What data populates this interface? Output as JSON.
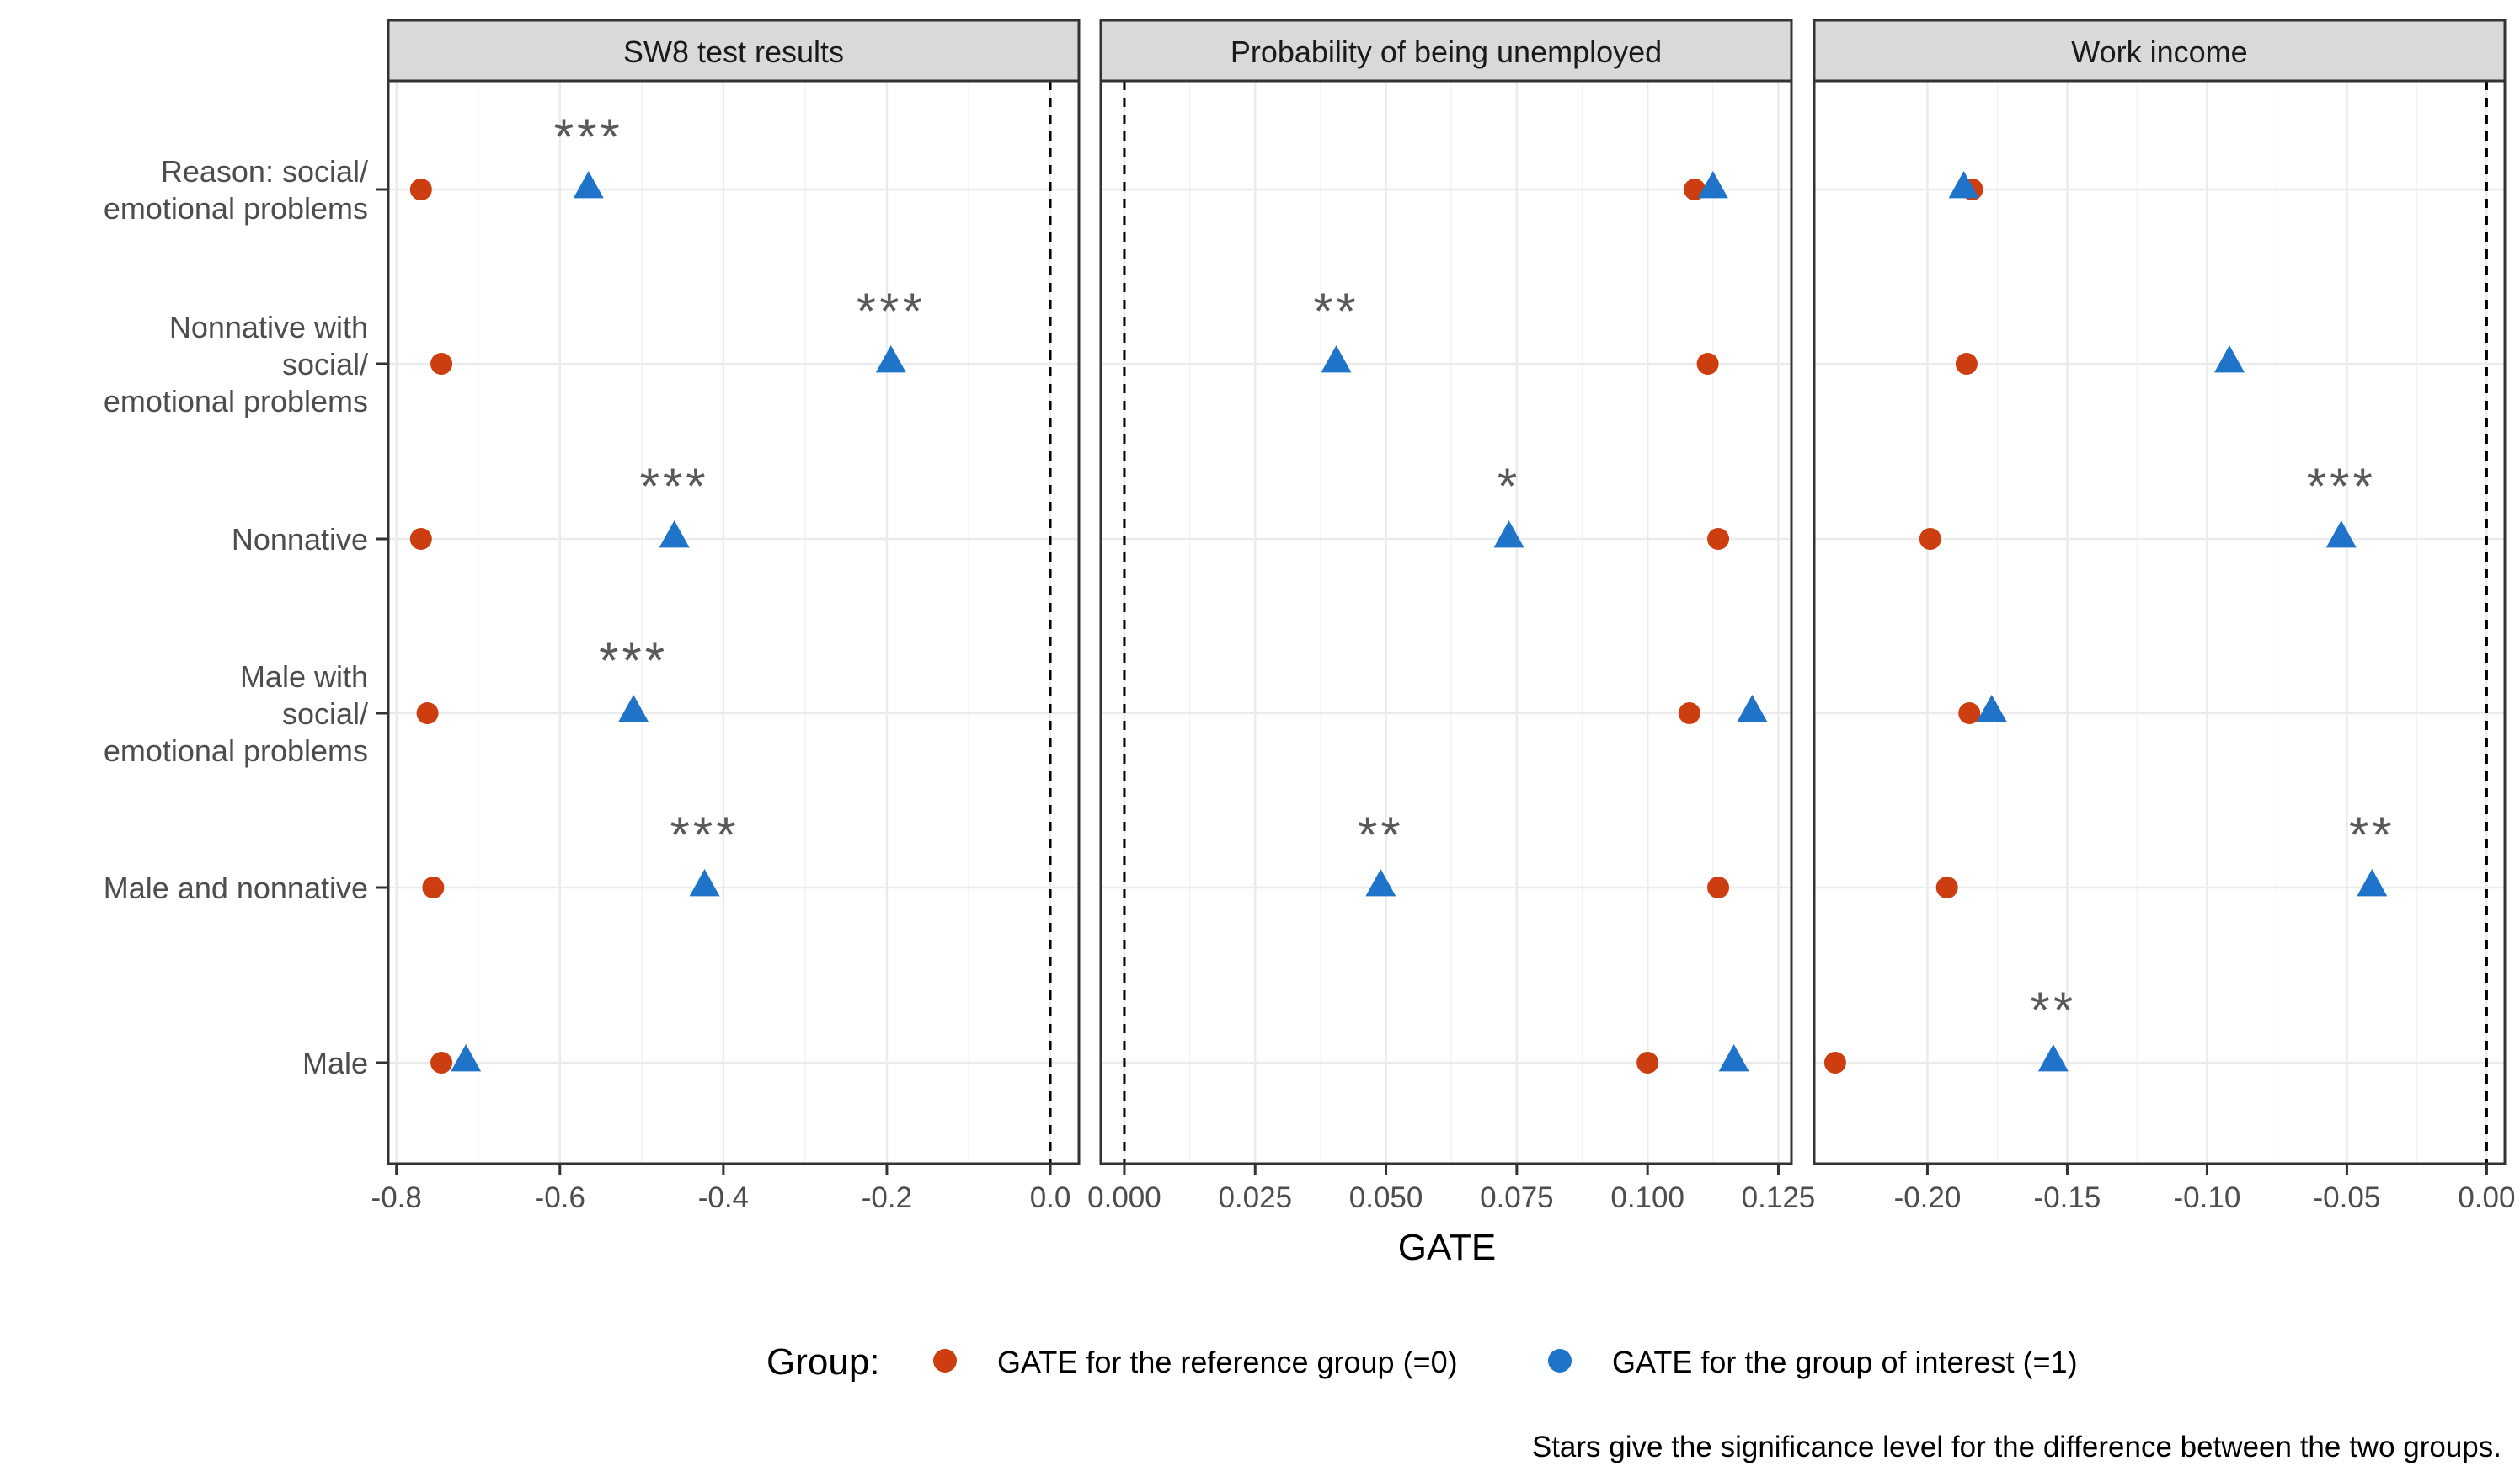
{
  "chart_data": {
    "type": "scatter",
    "xlabel": "GATE",
    "rows": [
      "Reason: social/ emotional problems",
      "Nonnative with social/ emotional problems",
      "Nonnative",
      "Male with social/ emotional problems",
      "Male and nonnative",
      "Male"
    ],
    "row_labels": [
      [
        "Reason: social/",
        "emotional problems"
      ],
      [
        "Nonnative with",
        "social/",
        "emotional problems"
      ],
      [
        "Nonnative"
      ],
      [
        "Male with",
        "social/",
        "emotional problems"
      ],
      [
        "Male and nonnative"
      ],
      [
        "Male"
      ]
    ],
    "panels": [
      {
        "title": "SW8 test results",
        "xlim": [
          -0.81,
          0.035
        ],
        "ticks": [
          -0.8,
          -0.6,
          -0.4,
          -0.2,
          0.0
        ],
        "tick_labels": [
          "-0.8",
          "-0.6",
          "-0.4",
          "-0.2",
          "0.0"
        ],
        "reference": [
          -0.77,
          -0.745,
          -0.77,
          -0.762,
          -0.755,
          -0.745
        ],
        "interest": [
          -0.565,
          -0.195,
          -0.46,
          -0.51,
          -0.423,
          -0.715
        ],
        "stars": [
          "***",
          "***",
          "***",
          "***",
          "***",
          ""
        ]
      },
      {
        "title": "Probability of being unemployed",
        "xlim": [
          -0.0045,
          0.1275
        ],
        "ticks": [
          0.0,
          0.025,
          0.05,
          0.075,
          0.1,
          0.125
        ],
        "tick_labels": [
          "0.000",
          "0.025",
          "0.050",
          "0.075",
          "0.100",
          "0.125"
        ],
        "reference": [
          0.109,
          0.1115,
          0.1135,
          0.108,
          0.1135,
          0.1
        ],
        "interest": [
          0.1125,
          0.0405,
          0.0735,
          0.12,
          0.049,
          0.1165
        ],
        "stars": [
          "",
          "**",
          "*",
          "",
          "**",
          ""
        ]
      },
      {
        "title": "Work income",
        "xlim": [
          -0.2405,
          0.0065
        ],
        "ticks": [
          -0.2,
          -0.15,
          -0.1,
          -0.05,
          0.0
        ],
        "tick_labels": [
          "-0.20",
          "-0.15",
          "-0.10",
          "-0.05",
          "0.00"
        ],
        "reference": [
          -0.184,
          -0.186,
          -0.199,
          -0.185,
          -0.193,
          -0.233
        ],
        "interest": [
          -0.187,
          -0.092,
          -0.052,
          -0.177,
          -0.041,
          -0.155
        ],
        "stars": [
          "",
          "",
          "***",
          "",
          "**",
          "**"
        ]
      }
    ],
    "legend": {
      "title": "Group:",
      "entries": [
        "GATE for the reference group (=0)",
        "GATE for the group of interest (=1)"
      ],
      "position": "bottom"
    },
    "caption": "Stars give the significance level for the difference between the two groups."
  },
  "colors": {
    "reference": "#cc3d10",
    "interest": "#1f74c9",
    "strip_fill": "#d9d9d9",
    "grid": "#ebebeb",
    "stars": "#595959",
    "axis_text": "#4d4d4d"
  }
}
